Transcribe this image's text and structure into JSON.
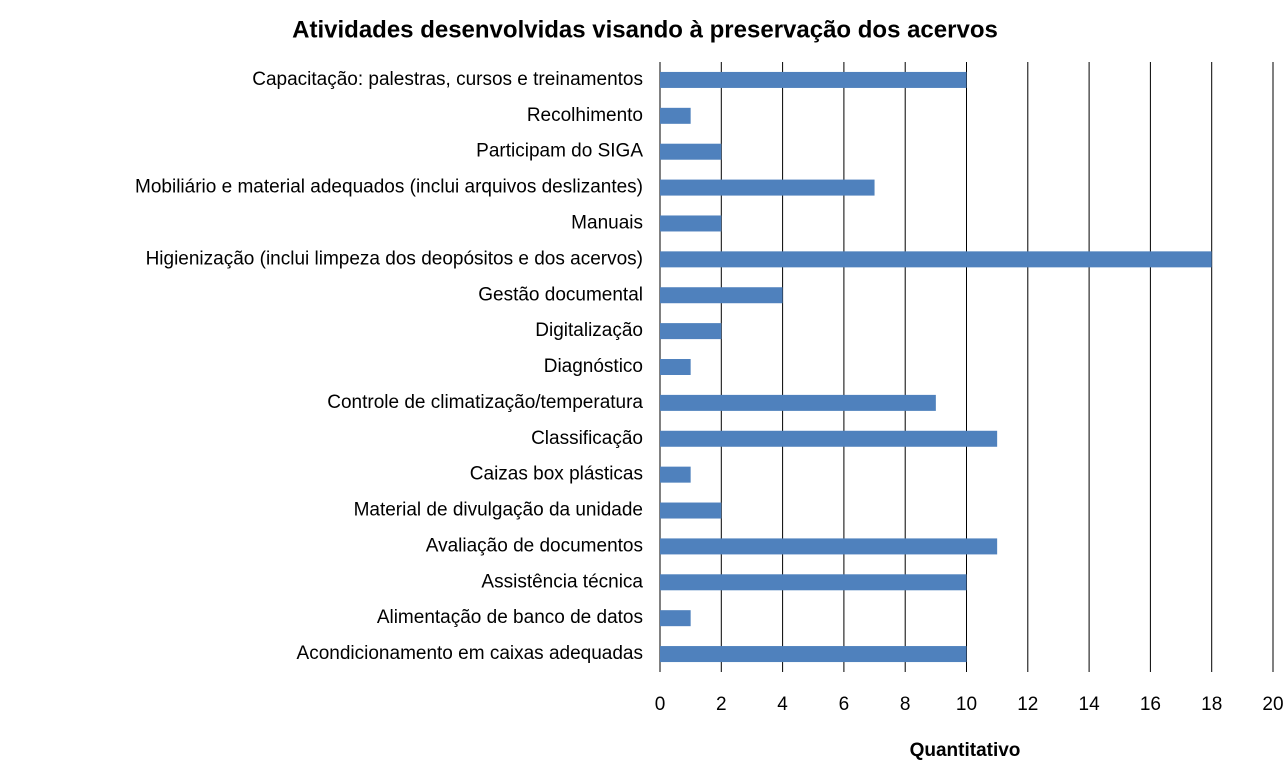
{
  "chart_data": {
    "type": "barh",
    "title": "Atividades desenvolvidas visando à preservação dos acervos",
    "x_label": "Quantitativo",
    "categories": [
      "Capacitação: palestras, cursos e treinamentos",
      "Recolhimento",
      "Participam do SIGA",
      "Mobiliário e material adequados (inclui arquivos deslizantes)",
      "Manuais",
      "Higienização (inclui limpeza dos deopósitos e dos acervos)",
      "Gestão documental",
      "Digitalização",
      "Diagnóstico",
      "Controle de climatização/temperatura",
      "Classificação",
      "Caizas box plásticas",
      "Material de divulgação da unidade",
      "Avaliação de documentos",
      "Assistência técnica",
      "Alimentação de banco de datos",
      "Acondicionamento em caixas adequadas"
    ],
    "values": [
      10,
      1,
      2,
      7,
      2,
      18,
      4,
      2,
      1,
      9,
      11,
      1,
      2,
      11,
      10,
      1,
      10
    ],
    "color": "#4f81bd",
    "xlim": [
      0,
      20
    ],
    "xticks": [
      0,
      2,
      4,
      6,
      8,
      10,
      12,
      14,
      16,
      18,
      20
    ],
    "grid": true
  }
}
